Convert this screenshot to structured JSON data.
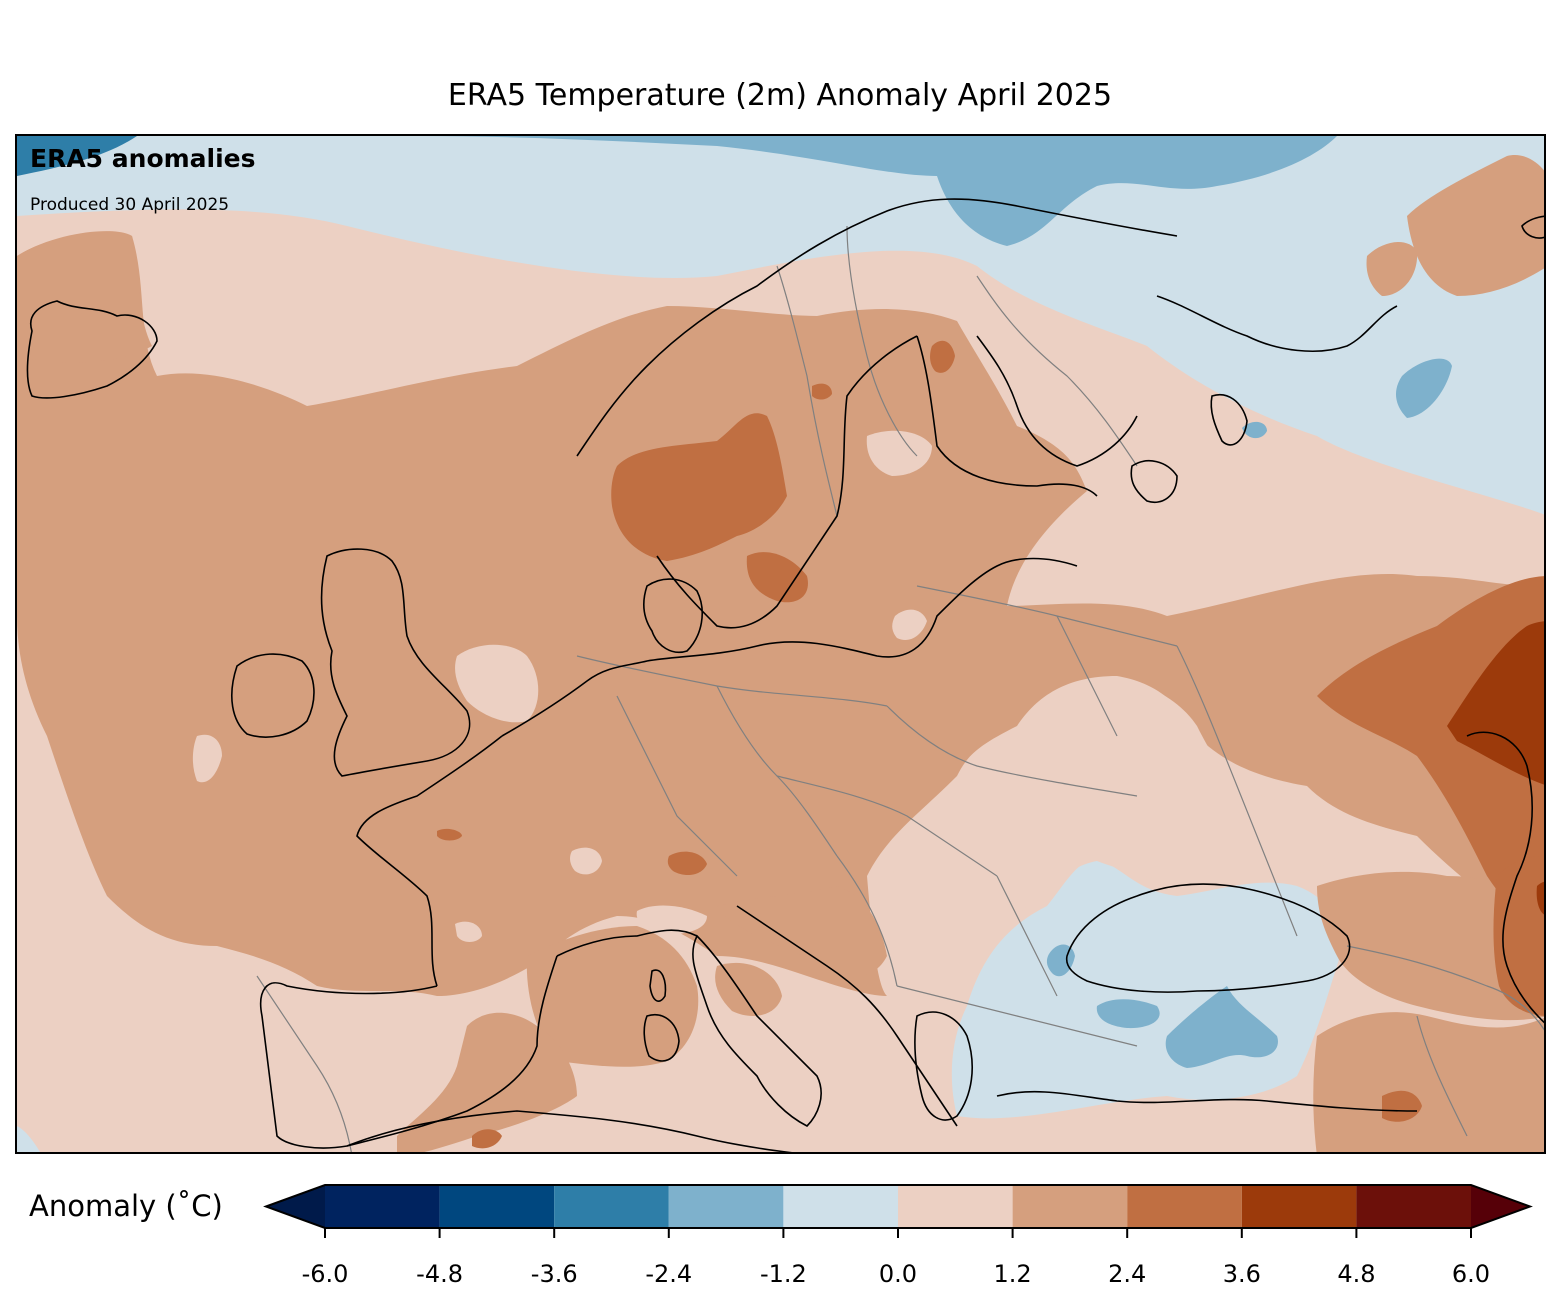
{
  "title": "ERA5 Temperature (2m) Anomaly April 2025",
  "annotation": {
    "heading": "ERA5 anomalies",
    "produced": "Produced 30 April 2025"
  },
  "colorbar": {
    "label": "Anomaly (˚C)",
    "ticks": [
      "-6.0",
      "-4.8",
      "-3.6",
      "-2.4",
      "-1.2",
      "0.0",
      "1.2",
      "2.4",
      "3.6",
      "4.8",
      "6.0"
    ],
    "bins": [
      {
        "from": -6.0,
        "to": -4.8,
        "color": "#00235f"
      },
      {
        "from": -4.8,
        "to": -3.6,
        "color": "#00477f"
      },
      {
        "from": -3.6,
        "to": -2.4,
        "color": "#2e7ea8"
      },
      {
        "from": -2.4,
        "to": -1.2,
        "color": "#7eb1cc"
      },
      {
        "from": -1.2,
        "to": 0.0,
        "color": "#cfe0e9"
      },
      {
        "from": 0.0,
        "to": 1.2,
        "color": "#ecd0c3"
      },
      {
        "from": 1.2,
        "to": 2.4,
        "color": "#d59f7e"
      },
      {
        "from": 2.4,
        "to": 3.6,
        "color": "#c06f42"
      },
      {
        "from": 3.6,
        "to": 4.8,
        "color": "#9c3a0b"
      },
      {
        "from": 4.8,
        "to": 6.0,
        "color": "#6c100a"
      }
    ],
    "under_color": "#001a4a",
    "over_color": "#560008"
  },
  "map": {
    "region": "Europe",
    "field": "2m temperature anomaly",
    "colors": {
      "cold_light": "#cfe0e9",
      "cold_mid": "#7eb1cc",
      "cold_dark": "#2e7ea8",
      "warm_light": "#ecd0c3",
      "warm_mid": "#d59f7e",
      "warm_dark": "#c06f42",
      "warm_darker": "#9c3a0b",
      "coast": "#000000",
      "border": "#808080"
    }
  }
}
